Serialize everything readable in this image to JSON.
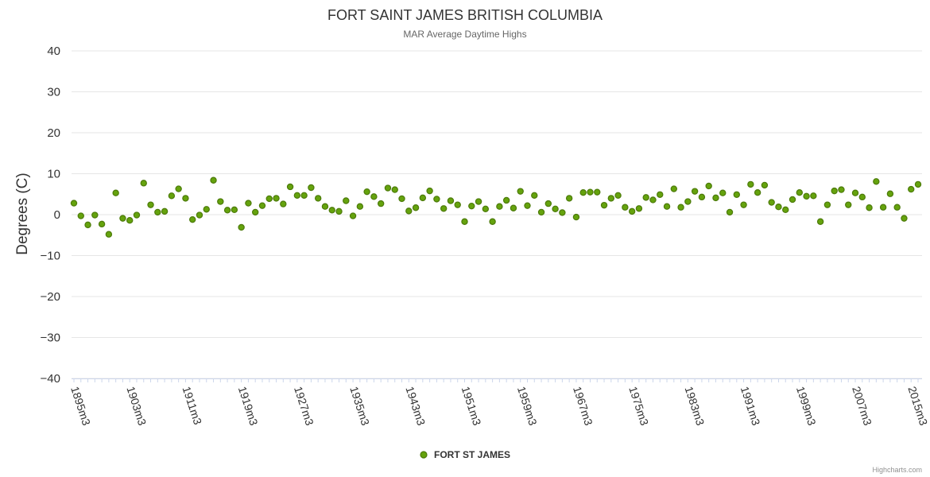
{
  "chart_data": {
    "type": "scatter",
    "title": "FORT SAINT JAMES BRITISH COLUMBIA",
    "subtitle": "MAR Average Daytime Highs",
    "ylabel": "Degrees (C)",
    "ylim": [
      -40,
      40
    ],
    "yticks": [
      40,
      30,
      20,
      10,
      0,
      -10,
      -20,
      -30,
      -40
    ],
    "ytick_labels": [
      "40",
      "30",
      "20",
      "10",
      "0",
      "−10",
      "−20",
      "−30",
      "−40"
    ],
    "grid": true,
    "x_start_year": 1895,
    "xticks": [
      "1895m3",
      "1903m3",
      "1911m3",
      "1919m3",
      "1927m3",
      "1935m3",
      "1943m3",
      "1951m3",
      "1959m3",
      "1967m3",
      "1975m3",
      "1983m3",
      "1991m3",
      "1999m3",
      "2007m3",
      "2015m3"
    ],
    "legend_position": "bottom-center",
    "series": [
      {
        "name": "FORT ST JAMES",
        "color": "#65a30d",
        "values": [
          2.8,
          -0.3,
          -2.5,
          -0.1,
          -2.3,
          -4.8,
          5.3,
          -0.9,
          -1.4,
          -0.1,
          7.7,
          2.4,
          0.6,
          0.8,
          4.6,
          6.3,
          4.0,
          -1.2,
          -0.1,
          1.3,
          8.4,
          3.2,
          1.1,
          1.2,
          -3.1,
          2.8,
          0.6,
          2.2,
          3.9,
          4.0,
          2.6,
          6.8,
          4.7,
          4.7,
          6.6,
          4.0,
          2.0,
          1.1,
          0.8,
          3.4,
          -0.3,
          2.0,
          5.6,
          4.4,
          2.7,
          6.5,
          6.1,
          3.9,
          0.9,
          1.7,
          4.1,
          5.8,
          3.8,
          1.5,
          3.4,
          2.4,
          -1.7,
          2.1,
          3.2,
          1.4,
          -1.7,
          2.0,
          3.5,
          1.6,
          5.7,
          2.2,
          4.7,
          0.6,
          2.7,
          1.4,
          0.5,
          4.0,
          -0.6,
          5.4,
          5.5,
          5.5,
          2.3,
          4.0,
          4.7,
          1.8,
          0.8,
          1.5,
          4.2,
          3.6,
          4.9,
          2.0,
          6.3,
          1.8,
          3.2,
          5.7,
          4.3,
          7.0,
          4.1,
          5.3,
          0.6,
          4.9,
          2.4,
          7.4,
          5.4,
          7.2,
          3.0,
          1.9,
          1.2,
          3.7,
          5.4,
          4.5,
          4.6,
          -1.7,
          2.4,
          5.8,
          6.1,
          2.4,
          5.3,
          4.3,
          1.7,
          8.1,
          1.8,
          5.1,
          1.8,
          -0.9,
          6.2,
          7.4
        ]
      }
    ]
  },
  "legend": {
    "label": "FORT ST JAMES"
  },
  "credits": "Highcharts.com"
}
